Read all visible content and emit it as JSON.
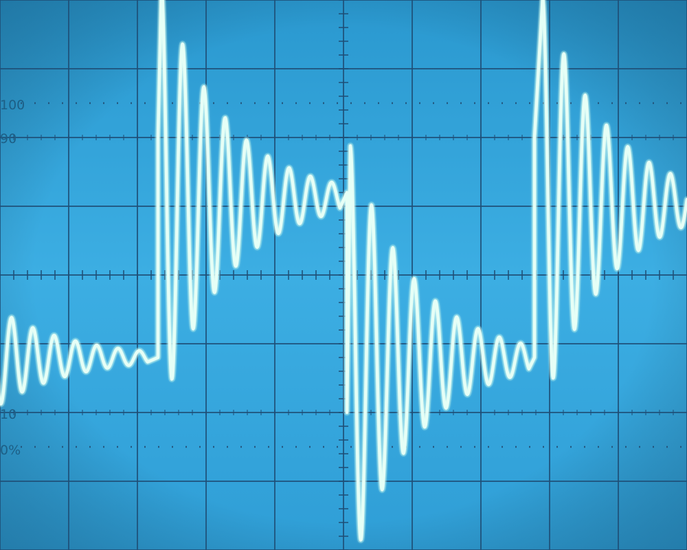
{
  "screen": {
    "graticule_labels": {
      "pct_100": "100",
      "pct_90": "90",
      "pct_10": "10",
      "pct_0": "0%"
    },
    "colors": {
      "background_top": "#2a98cf",
      "background_mid": "#3caee3",
      "background_bottom": "#2f9ed6",
      "grid": "#1f4f77",
      "dotted_grid": "#244f74",
      "trace": "#e6fff6",
      "trace_glow": "#a8f0e6",
      "label": "#1d5f86"
    },
    "grid": {
      "major_divisions_x": 10,
      "major_divisions_y": 8,
      "minor_ticks_per_division": 5
    }
  },
  "chart_data": {
    "type": "line",
    "description_free": true,
    "title": "",
    "xlabel": "",
    "ylabel": "",
    "xlim": [
      0,
      10
    ],
    "ylim": [
      -4,
      4
    ],
    "series": [
      {
        "segments": [
          {
            "kind": "decay",
            "t_start": -0.45,
            "t_end": 2.15,
            "level": -1.2,
            "amp": 1.05,
            "decay": 0.95,
            "period": 0.31
          },
          {
            "kind": "step",
            "t": 2.3,
            "from": -1.2,
            "to": 2.0
          },
          {
            "kind": "decay",
            "t_start": 2.35,
            "t_end": 4.95,
            "level": 1.12,
            "amp": 3.1,
            "decay": 1.05,
            "period": 0.31
          },
          {
            "kind": "step",
            "t": 5.05,
            "from": 1.2,
            "to": -2.0
          },
          {
            "kind": "decay",
            "t_start": 5.1,
            "t_end": 7.7,
            "level": -1.22,
            "amp": 3.1,
            "decay": 1.05,
            "period": 0.31
          },
          {
            "kind": "step",
            "t": 7.78,
            "from": -1.2,
            "to": 2.0
          },
          {
            "kind": "decay",
            "t_start": 7.9,
            "t_end": 10.0,
            "level": 1.05,
            "amp": 3.0,
            "decay": 1.05,
            "period": 0.31
          }
        ]
      }
    ]
  }
}
